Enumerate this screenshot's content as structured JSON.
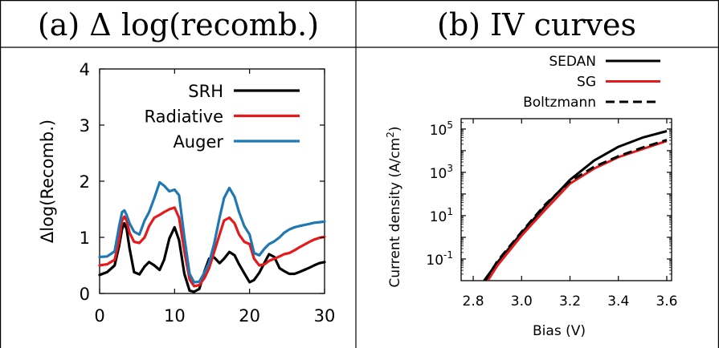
{
  "panels": {
    "a": {
      "header": "(a) Δ log(recomb.)"
    },
    "b": {
      "header": "(b) IV curves"
    }
  },
  "chart_data": [
    {
      "type": "line",
      "title": "(a) Δ log(recomb.)",
      "xlabel": "",
      "ylabel": "Δlog(Recomb.)",
      "xlim": [
        0,
        30
      ],
      "ylim": [
        0,
        4
      ],
      "xticks": [
        0,
        10,
        20,
        30
      ],
      "yticks": [
        0,
        1,
        2,
        3,
        4
      ],
      "xtick_labels": [
        "0",
        "10",
        "20",
        "30"
      ],
      "ytick_labels": [
        "0",
        "1",
        "2",
        "3",
        "4"
      ],
      "grid": false,
      "legend": "top-right",
      "series": [
        {
          "name": "SRH",
          "color": "#000000",
          "x": [
            0,
            1,
            2,
            2.6,
            3,
            3.3,
            3.6,
            4,
            4.6,
            5.3,
            6,
            6.6,
            7.3,
            8,
            8.6,
            9.3,
            10,
            10.6,
            11.3,
            12,
            12.6,
            13.3,
            14,
            14.6,
            15.3,
            16,
            16.6,
            17.3,
            18,
            18.6,
            19.3,
            20,
            20.6,
            21.3,
            22,
            22.6,
            23.3,
            24,
            24.6,
            25.3,
            26,
            26.6,
            27.3,
            28,
            28.6,
            29.3,
            30
          ],
          "y": [
            0.33,
            0.38,
            0.5,
            0.85,
            1.15,
            1.25,
            1.15,
            0.8,
            0.38,
            0.34,
            0.48,
            0.56,
            0.5,
            0.42,
            0.6,
            0.98,
            1.18,
            0.95,
            0.35,
            0.05,
            0.03,
            0.08,
            0.4,
            0.62,
            0.64,
            0.54,
            0.62,
            0.74,
            0.68,
            0.52,
            0.36,
            0.2,
            0.24,
            0.37,
            0.55,
            0.7,
            0.65,
            0.45,
            0.4,
            0.35,
            0.35,
            0.38,
            0.42,
            0.46,
            0.5,
            0.54,
            0.56
          ]
        },
        {
          "name": "Radiative",
          "color": "#e41a1c",
          "x": [
            0,
            1,
            2,
            2.6,
            3,
            3.3,
            3.6,
            4,
            4.6,
            5.3,
            6,
            6.6,
            7.3,
            8,
            8.6,
            9.3,
            10,
            10.6,
            11.3,
            12,
            12.6,
            13.3,
            14,
            14.6,
            15.3,
            16,
            16.6,
            17.3,
            18,
            18.6,
            19.3,
            20,
            20.6,
            21.3,
            22,
            22.6,
            23.3,
            24,
            24.6,
            25.3,
            26,
            26.6,
            27.3,
            28,
            28.6,
            29.3,
            30
          ],
          "y": [
            0.5,
            0.52,
            0.6,
            0.95,
            1.3,
            1.37,
            1.3,
            1.08,
            0.92,
            0.9,
            1.0,
            1.2,
            1.35,
            1.4,
            1.45,
            1.5,
            1.53,
            1.35,
            0.75,
            0.25,
            0.13,
            0.15,
            0.28,
            0.45,
            0.75,
            1.05,
            1.3,
            1.35,
            1.25,
            1.05,
            0.92,
            0.88,
            0.62,
            0.5,
            0.52,
            0.58,
            0.62,
            0.66,
            0.7,
            0.72,
            0.77,
            0.82,
            0.87,
            0.92,
            0.96,
            0.99,
            1.01
          ]
        },
        {
          "name": "Auger",
          "color": "#1f78b4",
          "x": [
            0,
            1,
            2,
            2.6,
            3,
            3.3,
            3.6,
            4,
            4.6,
            5.3,
            6,
            6.6,
            7.3,
            8,
            8.6,
            9.3,
            10,
            10.6,
            11.3,
            12,
            12.6,
            13.3,
            14,
            14.6,
            15.3,
            16,
            16.6,
            17.3,
            18,
            18.6,
            19.3,
            20,
            20.6,
            21.3,
            22,
            22.6,
            23.3,
            24,
            24.6,
            25.3,
            26,
            26.6,
            27.3,
            28,
            28.6,
            29.3,
            30
          ],
          "y": [
            0.65,
            0.66,
            0.75,
            1.2,
            1.45,
            1.48,
            1.4,
            1.25,
            1.1,
            1.05,
            1.3,
            1.45,
            1.7,
            1.98,
            1.92,
            1.82,
            1.85,
            1.75,
            1.0,
            0.35,
            0.2,
            0.21,
            0.38,
            0.55,
            0.9,
            1.35,
            1.7,
            1.88,
            1.72,
            1.45,
            1.2,
            1.05,
            0.72,
            0.68,
            0.8,
            0.88,
            0.93,
            1.0,
            1.08,
            1.14,
            1.18,
            1.2,
            1.22,
            1.24,
            1.26,
            1.27,
            1.28
          ]
        }
      ]
    },
    {
      "type": "line",
      "title": "(b) IV curves",
      "xlabel": "Bias (V)",
      "ylabel": "Current density (A/cm²)",
      "xlim": [
        2.75,
        3.62
      ],
      "ylim": [
        0.01,
        300000
      ],
      "yscale": "log",
      "xticks": [
        2.8,
        3.0,
        3.2,
        3.4,
        3.6
      ],
      "xtick_labels": [
        "2.8",
        "3.0",
        "3.2",
        "3.4",
        "3.6"
      ],
      "yticks": [
        0.1,
        10,
        1000,
        100000
      ],
      "ytick_labels": [
        {
          "base": "10",
          "exp": "-1"
        },
        {
          "base": "10",
          "exp": "1"
        },
        {
          "base": "10",
          "exp": "3"
        },
        {
          "base": "10",
          "exp": "5"
        }
      ],
      "grid": false,
      "legend": "top-right",
      "series": [
        {
          "name": "SEDAN",
          "color": "#000000",
          "dash": "solid",
          "x": [
            2.845,
            2.9,
            3.0,
            3.1,
            3.2,
            3.3,
            3.4,
            3.5,
            3.6
          ],
          "y": [
            0.01,
            0.07,
            1.6,
            30,
            450,
            3500,
            15000,
            40000,
            80000
          ]
        },
        {
          "name": "SG",
          "color": "#e41a1c",
          "dash": "solid",
          "x": [
            2.86,
            2.9,
            3.0,
            3.1,
            3.2,
            3.3,
            3.4,
            3.5,
            3.6
          ],
          "y": [
            0.01,
            0.05,
            1.2,
            20,
            300,
            1500,
            5000,
            12000,
            28000
          ]
        },
        {
          "name": "Boltzmann",
          "color": "#000000",
          "dash": "dashed",
          "x": [
            2.85,
            2.9,
            3.0,
            3.1,
            3.2,
            3.3,
            3.4,
            3.5,
            3.6
          ],
          "y": [
            0.01,
            0.08,
            1.8,
            35,
            380,
            1800,
            5500,
            14000,
            31000
          ]
        }
      ]
    }
  ]
}
